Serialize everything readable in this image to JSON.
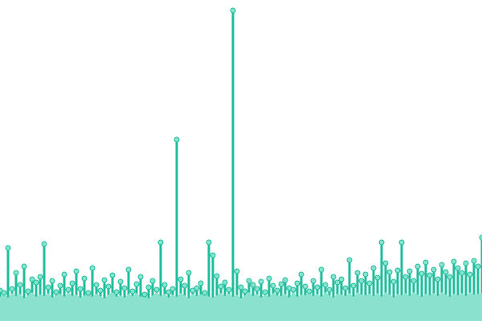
{
  "chart_data": {
    "type": "lollipop",
    "ylim": [
      0,
      400
    ],
    "series": [
      {
        "type": "stem",
        "color": "#1fbd9b",
        "marker_color": "#86e3cf",
        "values": [
          38,
          35,
          91,
          40,
          60,
          45,
          68,
          37,
          52,
          48,
          55,
          96,
          42,
          50,
          36,
          44,
          58,
          39,
          47,
          62,
          40,
          53,
          35,
          66,
          45,
          38,
          51,
          43,
          57,
          36,
          49,
          41,
          64,
          37,
          46,
          55,
          33,
          42,
          50,
          39,
          98,
          45,
          36,
          40,
          226,
          52,
          44,
          60,
          38,
          41,
          47,
          35,
          98,
          82,
          56,
          43,
          48,
          39,
          387,
          62,
          42,
          37,
          50,
          45,
          40,
          49,
          36,
          53,
          44,
          38,
          46,
          51,
          41,
          39,
          47,
          58,
          43,
          37,
          50,
          42,
          64,
          45,
          39,
          55,
          48,
          52,
          41,
          76,
          44,
          60,
          50,
          58,
          47,
          66,
          54,
          98,
          72,
          61,
          49,
          63,
          98,
          55,
          62,
          50,
          68,
          59,
          73,
          57,
          64,
          52,
          70,
          61,
          55,
          74,
          66,
          60,
          72,
          58,
          75,
          68,
          104
        ]
      },
      {
        "type": "area",
        "color": "#8ae1cd",
        "values": [
          30,
          33,
          29,
          35,
          31,
          34,
          28,
          32,
          36,
          30,
          33,
          31,
          35,
          29,
          32,
          34,
          30,
          36,
          31,
          33,
          29,
          32,
          35,
          30,
          34,
          31,
          28,
          33,
          36,
          30,
          32,
          29,
          34,
          31,
          35,
          30,
          33,
          28,
          32,
          36,
          31,
          34,
          29,
          33,
          30,
          35,
          32,
          28,
          34,
          31,
          33,
          36,
          30,
          29,
          32,
          35,
          31,
          34,
          30,
          33,
          28,
          32,
          36,
          31,
          34,
          29,
          33,
          30,
          35,
          32,
          31,
          34,
          29,
          36,
          30,
          33,
          32,
          35,
          31,
          34,
          30,
          36,
          32,
          29,
          34,
          33,
          31,
          35,
          30,
          36,
          33,
          32,
          34,
          31,
          35,
          30,
          36,
          33,
          29,
          34,
          32,
          35,
          31,
          36,
          33,
          30,
          34,
          32,
          35,
          31,
          36,
          33,
          30,
          34,
          32,
          35,
          31,
          36,
          33,
          34,
          35
        ]
      }
    ]
  }
}
